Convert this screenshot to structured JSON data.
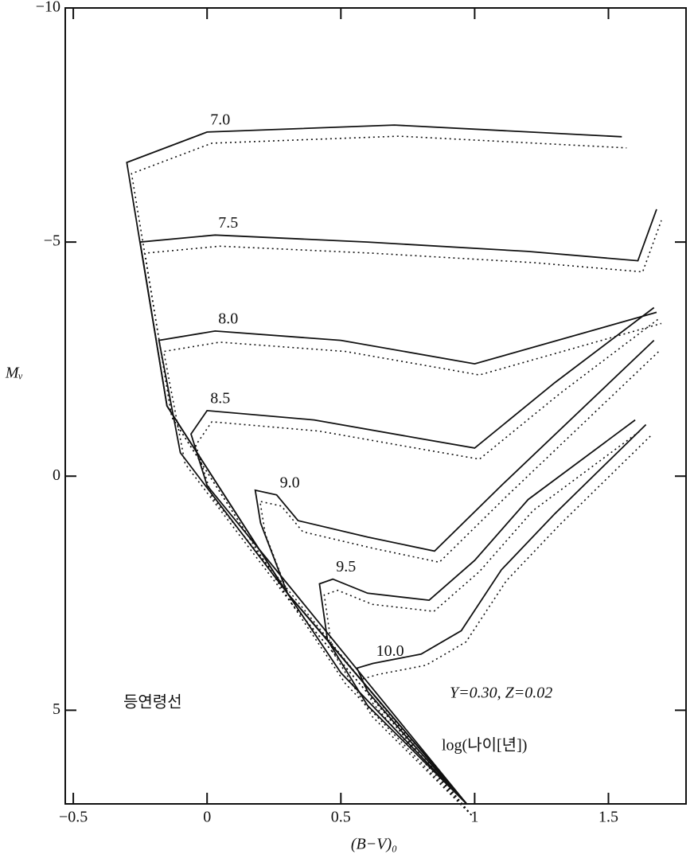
{
  "chart_data": {
    "type": "line",
    "x_label": "(B−V)₀",
    "y_label": "Mᵥ",
    "annotations": [
      "등연령선",
      "Y=0.30,  Z=0.02",
      "log(나이[년])"
    ],
    "xlim": [
      -0.53,
      1.79
    ],
    "ylim": [
      -10,
      7
    ],
    "y_inverted": true,
    "xticks": [
      {
        "value": -0.5,
        "label": "−0.5"
      },
      0,
      0.5,
      1,
      1.5
    ],
    "yticks": [
      {
        "value": -10,
        "label": "−10"
      },
      {
        "value": -5,
        "label": "−5"
      },
      0,
      5
    ],
    "color": "#111111",
    "series": [
      {
        "name": "7.0",
        "x": [
          0.97,
          0.3,
          -0.15,
          -0.3,
          0.0,
          0.7,
          1.55
        ],
        "values": [
          7,
          2.5,
          -1.5,
          -6.7,
          -7.35,
          -7.5,
          -7.25
        ]
      },
      {
        "name": "7.5",
        "x": [
          0.97,
          0.3,
          -0.15,
          -0.25,
          0.03,
          0.6,
          1.2,
          1.61,
          1.68
        ],
        "values": [
          7,
          2.5,
          -1.5,
          -5.0,
          -5.15,
          -5.0,
          -4.8,
          -4.6,
          -5.7
        ]
      },
      {
        "name": "8.0",
        "x": [
          0.97,
          0.3,
          -0.1,
          -0.18,
          0.03,
          0.5,
          1.0,
          1.68
        ],
        "values": [
          7,
          2.5,
          -0.5,
          -2.9,
          -3.1,
          -2.9,
          -2.4,
          -3.5
        ]
      },
      {
        "name": "8.5",
        "x": [
          0.97,
          0.3,
          0.0,
          -0.06,
          0.0,
          0.4,
          0.8,
          1.0,
          1.3,
          1.67
        ],
        "values": [
          7,
          2.3,
          0.2,
          -0.9,
          -1.4,
          -1.2,
          -0.8,
          -0.6,
          -2.0,
          -3.6
        ]
      },
      {
        "name": "9.0",
        "x": [
          0.97,
          0.5,
          0.3,
          0.2,
          0.18,
          0.26,
          0.34,
          0.6,
          0.85,
          1.1,
          1.67
        ],
        "values": [
          7,
          4.2,
          2.5,
          1.0,
          0.3,
          0.4,
          0.95,
          1.3,
          1.6,
          0.2,
          -2.9
        ]
      },
      {
        "name": "9.5",
        "x": [
          0.97,
          0.6,
          0.45,
          0.42,
          0.47,
          0.6,
          0.83,
          1.0,
          1.2,
          1.6
        ],
        "values": [
          7,
          4.9,
          3.5,
          2.3,
          2.2,
          2.5,
          2.65,
          1.8,
          0.5,
          -1.2
        ]
      },
      {
        "name": "10.0",
        "x": [
          0.97,
          0.75,
          0.6,
          0.56,
          0.62,
          0.8,
          0.95,
          1.1,
          1.3,
          1.64
        ],
        "values": [
          7,
          5.6,
          4.6,
          4.1,
          4.0,
          3.8,
          3.3,
          2.0,
          0.8,
          -1.1
        ]
      }
    ]
  }
}
